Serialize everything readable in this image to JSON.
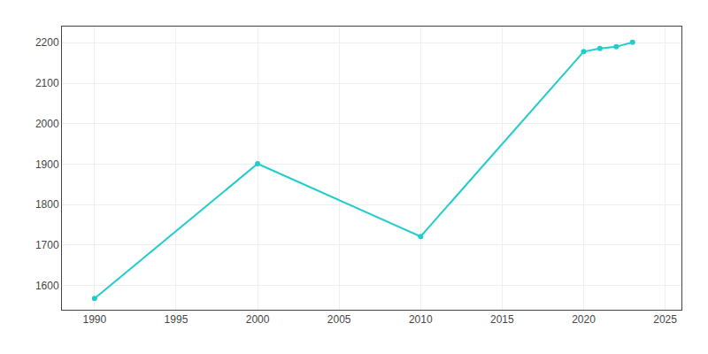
{
  "chart_data": {
    "type": "line",
    "x": [
      1990,
      2000,
      2010,
      2020,
      2021,
      2022,
      2023
    ],
    "values": [
      1568,
      1901,
      1721,
      2178,
      2186,
      2190,
      2201
    ],
    "color": "#22CCCC",
    "marker": "circle",
    "line_style": "solid",
    "xlim": [
      1988,
      2026
    ],
    "ylim": [
      1540,
      2240
    ],
    "xticks": [
      1990,
      1995,
      2000,
      2005,
      2010,
      2015,
      2020,
      2025
    ],
    "yticks": [
      1600,
      1700,
      1800,
      1900,
      2000,
      2100,
      2200
    ],
    "grid": true
  }
}
